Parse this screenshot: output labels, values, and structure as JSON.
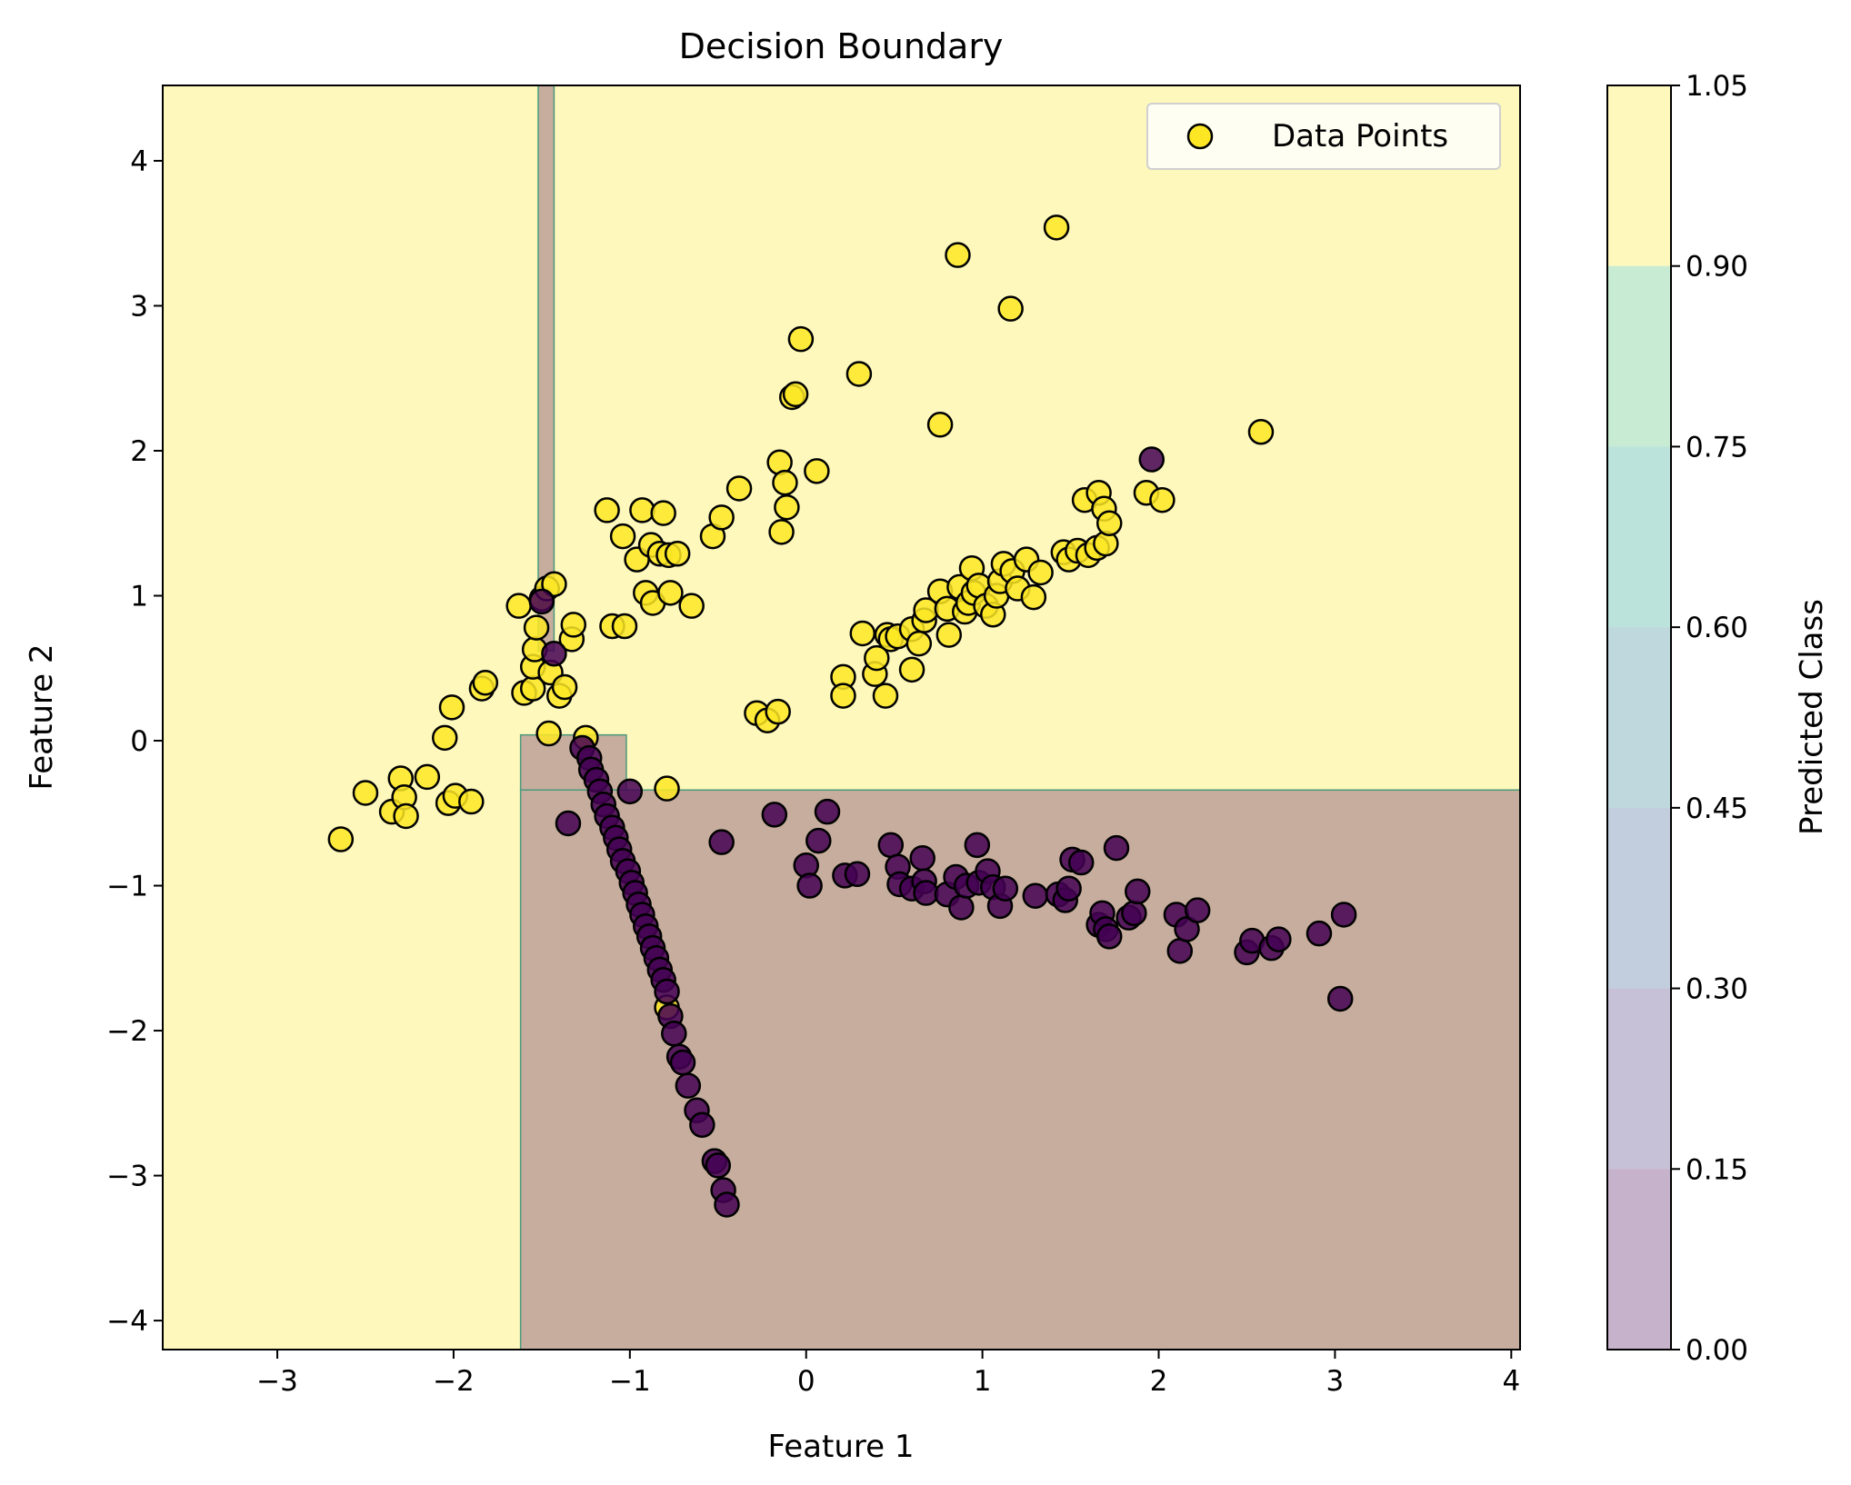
{
  "chart_data": {
    "type": "scatter",
    "title": "Decision Boundary",
    "xlabel": "Feature 1",
    "ylabel": "Feature 2",
    "xlim": [
      -3.65,
      4.05
    ],
    "ylim": [
      -4.2,
      4.52
    ],
    "xticks": [
      -3,
      -2,
      -1,
      0,
      1,
      2,
      3,
      4
    ],
    "yticks": [
      -4,
      -3,
      -2,
      -1,
      0,
      1,
      2,
      3,
      4
    ],
    "legend": {
      "label": "Data Points",
      "position": "top-right"
    },
    "colorbar": {
      "label": "Predicted Class",
      "ticks": [
        "0.00",
        "0.15",
        "0.30",
        "0.45",
        "0.60",
        "0.75",
        "0.90",
        "1.05"
      ],
      "colors": [
        "#440154",
        "#46327e",
        "#365c8d",
        "#277f8e",
        "#1fa187",
        "#4ac16d",
        "#fde725"
      ],
      "alpha": 0.3
    },
    "colors": {
      "class_0": "#440154",
      "class_1": "#fde725",
      "edge": "#000000"
    },
    "decision_regions": [
      {
        "class": 1,
        "x": [
          -3.65,
          4.05
        ],
        "y": [
          -4.2,
          4.52
        ]
      },
      {
        "class": 0,
        "x": [
          -1.62,
          4.05
        ],
        "y": [
          -4.2,
          -0.34
        ]
      },
      {
        "class": 0,
        "x": [
          -1.62,
          -1.02
        ],
        "y": [
          -0.34,
          0.04
        ]
      },
      {
        "class": 0,
        "x": [
          -1.52,
          -1.43
        ],
        "y": [
          0.62,
          4.52
        ]
      }
    ],
    "series": [
      {
        "class": 1,
        "points": [
          [
            -2.64,
            -0.68
          ],
          [
            -2.5,
            -0.36
          ],
          [
            -2.35,
            -0.49
          ],
          [
            -2.3,
            -0.26
          ],
          [
            -2.28,
            -0.39
          ],
          [
            -2.27,
            -0.52
          ],
          [
            -2.15,
            -0.25
          ],
          [
            -2.05,
            0.02
          ],
          [
            -2.03,
            -0.43
          ],
          [
            -2.01,
            0.23
          ],
          [
            -1.99,
            -0.38
          ],
          [
            -1.9,
            -0.42
          ],
          [
            -1.84,
            0.36
          ],
          [
            -1.82,
            0.4
          ],
          [
            -1.63,
            0.93
          ],
          [
            -1.6,
            0.33
          ],
          [
            -1.55,
            0.36
          ],
          [
            -1.55,
            0.51
          ],
          [
            -1.54,
            0.63
          ],
          [
            -1.53,
            0.78
          ],
          [
            -1.5,
            0.98
          ],
          [
            -1.47,
            1.05
          ],
          [
            -1.46,
            0.05
          ],
          [
            -1.45,
            0.47
          ],
          [
            -1.43,
            1.08
          ],
          [
            -1.4,
            0.31
          ],
          [
            -1.37,
            0.37
          ],
          [
            -1.33,
            0.7
          ],
          [
            -1.32,
            0.8
          ],
          [
            -1.13,
            1.59
          ],
          [
            -1.1,
            0.79
          ],
          [
            -1.04,
            1.41
          ],
          [
            -1.03,
            0.79
          ],
          [
            -0.96,
            1.25
          ],
          [
            -0.93,
            1.59
          ],
          [
            -0.91,
            1.02
          ],
          [
            -0.88,
            1.35
          ],
          [
            -0.87,
            0.95
          ],
          [
            -0.83,
            1.29
          ],
          [
            -0.81,
            1.57
          ],
          [
            -0.79,
            -0.33
          ],
          [
            -0.78,
            1.28
          ],
          [
            -0.77,
            1.02
          ],
          [
            -0.73,
            1.29
          ],
          [
            -0.65,
            0.93
          ],
          [
            -0.53,
            1.41
          ],
          [
            -0.48,
            1.54
          ],
          [
            -0.38,
            1.74
          ],
          [
            -0.28,
            0.19
          ],
          [
            -0.22,
            0.14
          ],
          [
            -0.16,
            0.2
          ],
          [
            -0.15,
            1.92
          ],
          [
            -0.14,
            1.44
          ],
          [
            -0.12,
            1.78
          ],
          [
            -0.11,
            1.61
          ],
          [
            -0.08,
            2.37
          ],
          [
            -0.06,
            2.39
          ],
          [
            -0.03,
            2.77
          ],
          [
            0.06,
            1.86
          ],
          [
            0.21,
            0.44
          ],
          [
            0.21,
            0.31
          ],
          [
            0.3,
            2.53
          ],
          [
            0.32,
            0.74
          ],
          [
            0.39,
            0.46
          ],
          [
            0.4,
            0.57
          ],
          [
            0.45,
            0.31
          ],
          [
            0.46,
            0.73
          ],
          [
            0.48,
            0.7
          ],
          [
            0.52,
            0.72
          ],
          [
            0.6,
            0.49
          ],
          [
            0.6,
            0.77
          ],
          [
            0.64,
            0.67
          ],
          [
            0.67,
            0.83
          ],
          [
            0.68,
            0.9
          ],
          [
            0.76,
            2.18
          ],
          [
            0.76,
            1.03
          ],
          [
            0.8,
            0.91
          ],
          [
            0.81,
            0.73
          ],
          [
            0.86,
            3.35
          ],
          [
            0.87,
            1.06
          ],
          [
            0.9,
            0.89
          ],
          [
            0.92,
            0.95
          ],
          [
            0.94,
            1.19
          ],
          [
            0.95,
            1.02
          ],
          [
            0.98,
            1.07
          ],
          [
            1.02,
            0.93
          ],
          [
            1.06,
            0.87
          ],
          [
            1.08,
            1.0
          ],
          [
            1.1,
            1.1
          ],
          [
            1.12,
            1.22
          ],
          [
            1.16,
            2.98
          ],
          [
            1.17,
            1.17
          ],
          [
            1.2,
            1.05
          ],
          [
            1.25,
            1.25
          ],
          [
            1.29,
            0.99
          ],
          [
            1.33,
            1.16
          ],
          [
            1.42,
            3.54
          ],
          [
            1.46,
            1.3
          ],
          [
            1.49,
            1.25
          ],
          [
            1.54,
            1.31
          ],
          [
            1.58,
            1.66
          ],
          [
            1.6,
            1.28
          ],
          [
            1.65,
            1.33
          ],
          [
            1.66,
            1.71
          ],
          [
            1.69,
            1.6
          ],
          [
            1.7,
            1.36
          ],
          [
            1.72,
            1.5
          ],
          [
            1.93,
            1.71
          ],
          [
            2.02,
            1.66
          ],
          [
            2.58,
            2.13
          ],
          [
            -1.25,
            0.02
          ],
          [
            -0.79,
            -1.84
          ]
        ]
      },
      {
        "class": 0,
        "points": [
          [
            -1.5,
            0.96
          ],
          [
            -1.43,
            0.6
          ],
          [
            -1.35,
            -0.57
          ],
          [
            -1.27,
            -0.05
          ],
          [
            -1.23,
            -0.12
          ],
          [
            -1.22,
            -0.2
          ],
          [
            -1.19,
            -0.27
          ],
          [
            -1.17,
            -0.35
          ],
          [
            -1.15,
            -0.44
          ],
          [
            -1.13,
            -0.52
          ],
          [
            -1.1,
            -0.6
          ],
          [
            -1.08,
            -0.67
          ],
          [
            -1.06,
            -0.75
          ],
          [
            -1.04,
            -0.83
          ],
          [
            -1.01,
            -0.9
          ],
          [
            -1.0,
            -0.35
          ],
          [
            -0.99,
            -0.98
          ],
          [
            -0.97,
            -1.05
          ],
          [
            -0.95,
            -1.13
          ],
          [
            -0.93,
            -1.2
          ],
          [
            -0.91,
            -1.28
          ],
          [
            -0.89,
            -1.35
          ],
          [
            -0.87,
            -1.43
          ],
          [
            -0.85,
            -1.5
          ],
          [
            -0.83,
            -1.58
          ],
          [
            -0.81,
            -1.65
          ],
          [
            -0.79,
            -1.73
          ],
          [
            -0.77,
            -1.9
          ],
          [
            -0.75,
            -2.02
          ],
          [
            -0.72,
            -2.18
          ],
          [
            -0.7,
            -2.22
          ],
          [
            -0.67,
            -2.38
          ],
          [
            -0.62,
            -2.55
          ],
          [
            -0.59,
            -2.65
          ],
          [
            -0.52,
            -2.9
          ],
          [
            -0.5,
            -2.93
          ],
          [
            -0.47,
            -3.1
          ],
          [
            -0.45,
            -3.2
          ],
          [
            -0.48,
            -0.7
          ],
          [
            -0.18,
            -0.51
          ],
          [
            0.0,
            -0.86
          ],
          [
            0.02,
            -1.0
          ],
          [
            0.07,
            -0.69
          ],
          [
            0.12,
            -0.49
          ],
          [
            0.22,
            -0.93
          ],
          [
            0.29,
            -0.92
          ],
          [
            0.48,
            -0.72
          ],
          [
            0.52,
            -0.87
          ],
          [
            0.53,
            -0.99
          ],
          [
            0.6,
            -1.02
          ],
          [
            0.66,
            -0.81
          ],
          [
            0.67,
            -0.97
          ],
          [
            0.68,
            -1.05
          ],
          [
            0.8,
            -1.06
          ],
          [
            0.85,
            -0.94
          ],
          [
            0.88,
            -1.15
          ],
          [
            0.91,
            -1.0
          ],
          [
            0.97,
            -0.72
          ],
          [
            0.98,
            -0.98
          ],
          [
            1.03,
            -0.9
          ],
          [
            1.06,
            -1.01
          ],
          [
            1.1,
            -1.14
          ],
          [
            1.13,
            -1.02
          ],
          [
            1.3,
            -1.07
          ],
          [
            1.43,
            -1.06
          ],
          [
            1.47,
            -1.1
          ],
          [
            1.49,
            -1.02
          ],
          [
            1.51,
            -0.82
          ],
          [
            1.56,
            -0.84
          ],
          [
            1.66,
            -1.27
          ],
          [
            1.68,
            -1.19
          ],
          [
            1.7,
            -1.3
          ],
          [
            1.72,
            -1.35
          ],
          [
            1.76,
            -0.74
          ],
          [
            1.83,
            -1.22
          ],
          [
            1.86,
            -1.19
          ],
          [
            1.88,
            -1.04
          ],
          [
            2.1,
            -1.2
          ],
          [
            2.12,
            -1.45
          ],
          [
            2.16,
            -1.3
          ],
          [
            2.22,
            -1.17
          ],
          [
            2.5,
            -1.46
          ],
          [
            2.53,
            -1.38
          ],
          [
            2.64,
            -1.43
          ],
          [
            2.68,
            -1.37
          ],
          [
            2.91,
            -1.33
          ],
          [
            3.05,
            -1.2
          ],
          [
            3.03,
            -1.78
          ],
          [
            1.96,
            1.94
          ]
        ]
      }
    ]
  }
}
